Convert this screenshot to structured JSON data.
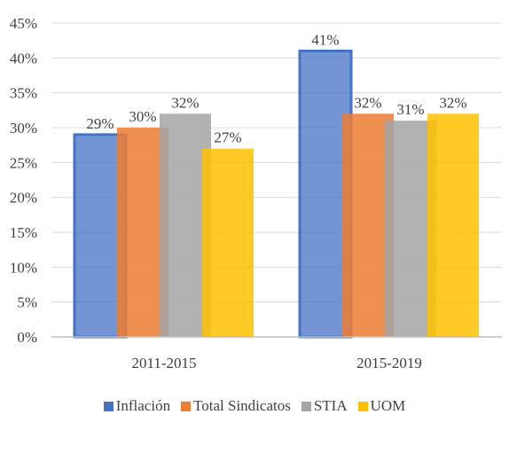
{
  "chart_data": {
    "type": "bar",
    "categories": [
      "2011-2015",
      "2015-2019"
    ],
    "series": [
      {
        "name": "Inflación",
        "values": [
          29,
          41
        ],
        "labels": [
          "29%",
          "41%"
        ],
        "color": "#4472C4"
      },
      {
        "name": "Total Sindicatos",
        "values": [
          30,
          32
        ],
        "labels": [
          "30%",
          "32%"
        ],
        "color": "#ED7D31"
      },
      {
        "name": "STIA",
        "values": [
          32,
          31
        ],
        "labels": [
          "32%",
          "31%"
        ],
        "color": "#A5A5A5"
      },
      {
        "name": "UOM",
        "values": [
          27,
          32
        ],
        "labels": [
          "27%",
          "32%"
        ],
        "color": "#FFC000"
      }
    ],
    "yticks": [
      "0%",
      "5%",
      "10%",
      "15%",
      "20%",
      "25%",
      "30%",
      "35%",
      "40%",
      "45%"
    ],
    "ylim": [
      0,
      45
    ],
    "grid": true,
    "legend_position": "bottom",
    "title": "",
    "xlabel": "",
    "ylabel": ""
  }
}
